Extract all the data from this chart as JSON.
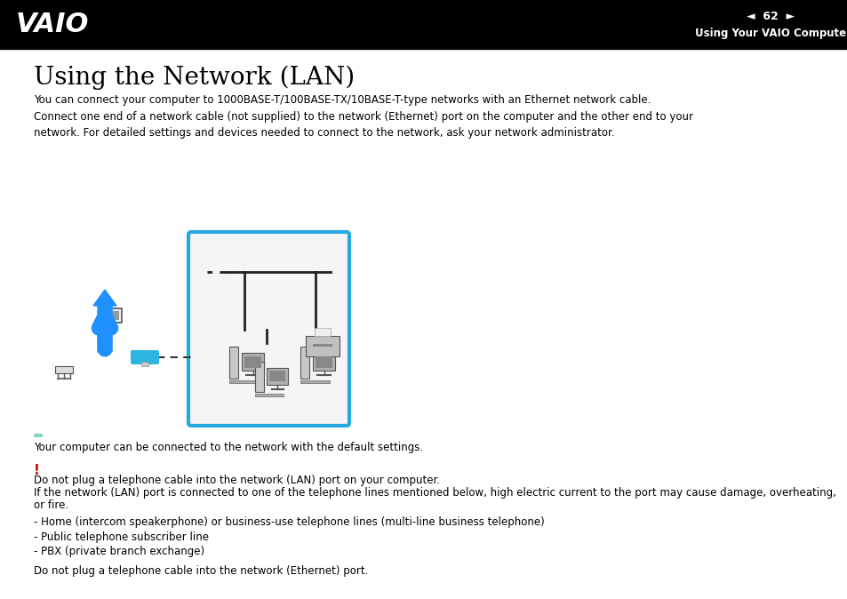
{
  "header_bg": "#000000",
  "header_text_color": "#ffffff",
  "header_page": "62",
  "header_subtitle": "Using Your VAIO Computer",
  "page_bg": "#ffffff",
  "title": "Using the Network (LAN)",
  "title_fontsize": 20,
  "title_color": "#000000",
  "body_text_color": "#000000",
  "body_fontsize": 8.5,
  "paragraph1": "You can connect your computer to 1000BASE-T/100BASE-TX/10BASE-T-type networks with an Ethernet network cable.\nConnect one end of a network cable (not supplied) to the network (Ethernet) port on the computer and the other end to your\nnetwork. For detailed settings and devices needed to connect to the network, ask your network administrator.",
  "note_color": "#2cb5a0",
  "note_text": "Your computer can be connected to the network with the default settings.",
  "warning_color": "#cc0000",
  "warning_line1": "Do not plug a telephone cable into the network (LAN) port on your computer.",
  "warning_line2": "If the network (LAN) port is connected to one of the telephone lines mentioned below, high electric current to the port may cause damage, overheating,",
  "warning_line3": "or fire.",
  "bullet1": "- Home (intercom speakerphone) or business-use telephone lines (multi-line business telephone)",
  "bullet2": "- Public telephone subscriber line",
  "bullet3": "- PBX (private branch exchange)",
  "final_note": "Do not plug a telephone cable into the network (Ethernet) port.",
  "diagram_border_color": "#29a8e0",
  "arrow_color": "#1e90ff",
  "cable_color": "#2cb5e0"
}
